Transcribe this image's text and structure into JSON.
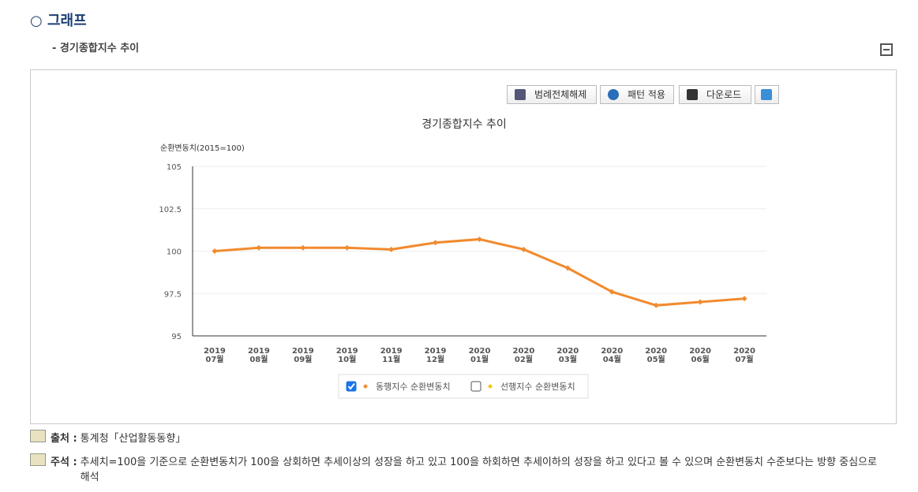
{
  "header": {
    "title": "○ 그래프",
    "subtitle": "- 경기종합지수 추이"
  },
  "toolbar": {
    "buttons": [
      "범례전체해제",
      "패턴 적용",
      "다운로드"
    ]
  },
  "chart_data": {
    "type": "line",
    "title": "경기종합지수 추이",
    "y_label": "순환변동치(2015=100)",
    "categories": [
      [
        "2019",
        "07월"
      ],
      [
        "2019",
        "08월"
      ],
      [
        "2019",
        "09월"
      ],
      [
        "2019",
        "10월"
      ],
      [
        "2019",
        "11월"
      ],
      [
        "2019",
        "12월"
      ],
      [
        "2020",
        "01월"
      ],
      [
        "2020",
        "02월"
      ],
      [
        "2020",
        "03월"
      ],
      [
        "2020",
        "04월"
      ],
      [
        "2020",
        "05월"
      ],
      [
        "2020",
        "06월"
      ],
      [
        "2020",
        "07월"
      ]
    ],
    "series": [
      {
        "name": "동행지수 순환변동치",
        "color": "#f28a2e",
        "checked": true,
        "values": [
          100.0,
          100.2,
          100.2,
          100.2,
          100.1,
          100.5,
          100.7,
          100.1,
          99.0,
          97.6,
          96.8,
          97.0,
          97.2
        ]
      },
      {
        "name": "선행지수 순환변동치",
        "color": "#f5c518",
        "checked": false
      }
    ],
    "ylim": [
      95,
      105
    ],
    "yticks": [
      95,
      97.5,
      100,
      102.5,
      105
    ],
    "grid": true
  },
  "notes": [
    {
      "label": "출처 :",
      "text": "통계청「산업활동동향」"
    },
    {
      "label": "주석 :",
      "text": "추세치=100을 기준으로 순환변동치가 100을 상회하면 추세이상의 성장을 하고 있고 100을 하회하면 추세이하의 성장을 하고 있다고 볼 수 있으며 순환변동치 수준보다는 방향 중심으로 해석"
    }
  ]
}
